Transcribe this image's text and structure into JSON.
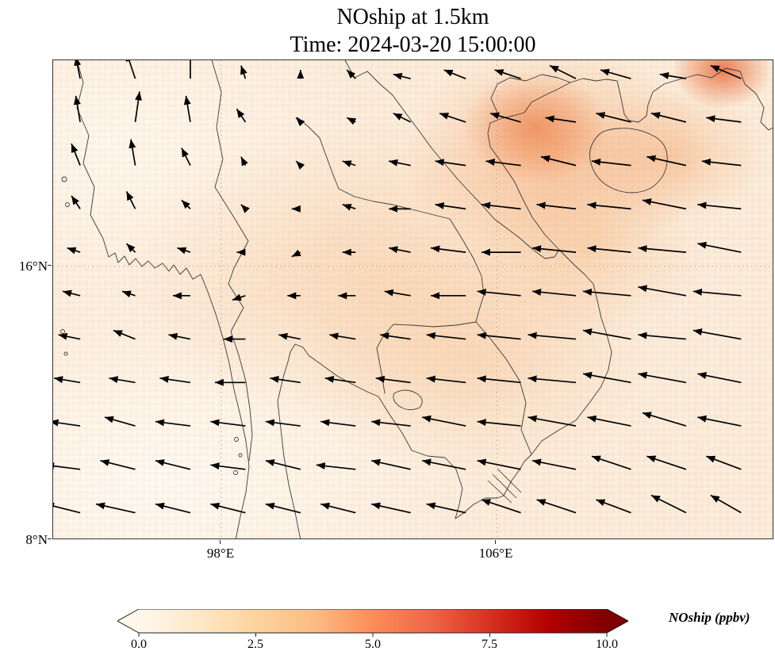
{
  "title": {
    "line1": "NOship at 1.5km",
    "line2": "Time: 2024-03-20 15:00:00"
  },
  "axes": {
    "yticks": [
      {
        "label": "16°N"
      },
      {
        "label": "8°N"
      }
    ],
    "xticks": [
      {
        "label": "98°E"
      },
      {
        "label": "106°E"
      }
    ]
  },
  "colorbar": {
    "label": "NOship (ppbv)",
    "ticks": [
      "0.0",
      "2.5",
      "5.0",
      "7.5",
      "10.0"
    ],
    "tick_values": [
      0.0,
      2.5,
      5.0,
      7.5,
      10.0
    ],
    "extend": "both",
    "colors": [
      "#fff7ec",
      "#fee8c8",
      "#fdd49e",
      "#fdbb84",
      "#fc8d59",
      "#ef6548",
      "#d7301f",
      "#b30000",
      "#7f0000"
    ]
  },
  "chart_data": {
    "type": "heatmap",
    "subtype": "geographic field map with wind-vector (quiver) overlay and coastlines",
    "variable": "NOship",
    "units": "ppbv",
    "level": "1.5km",
    "time": "2024-03-20 15:00:00",
    "colormap": "OrRd",
    "value_range": [
      0,
      10
    ],
    "extent": {
      "lon": [
        93.1,
        114.1
      ],
      "lat": [
        8,
        22
      ]
    },
    "gridlines": {
      "lons": [
        98,
        106
      ],
      "lats": [
        8,
        16
      ],
      "style": "dotted"
    },
    "shading_summary": [
      {
        "region": "western ocean / Bay of Bengal and far southwest",
        "approx_value_ppbv": 0.3
      },
      {
        "region": "central Thailand, Laos, Cambodia (broad wash)",
        "approx_value_ppbv": 1.5
      },
      {
        "region": "central Vietnam coast patch",
        "approx_value_ppbv": 2.0
      },
      {
        "region": "northern Vietnam / Gulf of Tonkin",
        "approx_value_ppbv": 4.0
      },
      {
        "region": "far northeast corner (southern China)",
        "approx_value_ppbv": 6.0
      }
    ],
    "wind": {
      "description": "arrow components [u,v]; u eastward, v northward, relative units",
      "lons": [
        93.9,
        95.5,
        97.1,
        98.7,
        100.3,
        101.9,
        103.5,
        105.1,
        106.7,
        108.3,
        109.9,
        111.5,
        113.1
      ],
      "lats": [
        21.5,
        20.23,
        18.96,
        17.69,
        16.42,
        15.15,
        13.88,
        12.61,
        11.34,
        10.07,
        8.8
      ],
      "uv": [
        [
          [
            -1,
            5
          ],
          [
            -2,
            6
          ],
          [
            0,
            7
          ],
          [
            -1,
            3
          ],
          [
            0,
            2
          ],
          [
            -2,
            2
          ],
          [
            -4,
            1
          ],
          [
            -5,
            2
          ],
          [
            -6,
            2
          ],
          [
            -6,
            3
          ],
          [
            -7,
            2
          ],
          [
            -6,
            1
          ],
          [
            -7,
            3
          ]
        ],
        [
          [
            -1,
            6
          ],
          [
            1,
            7
          ],
          [
            -1,
            6
          ],
          [
            -2,
            3
          ],
          [
            -1,
            1
          ],
          [
            -2,
            1
          ],
          [
            -4,
            2
          ],
          [
            -6,
            2
          ],
          [
            -7,
            2
          ],
          [
            -7,
            1
          ],
          [
            -8,
            2
          ],
          [
            -8,
            2
          ],
          [
            -8,
            1
          ]
        ],
        [
          [
            -2,
            5
          ],
          [
            -1,
            6
          ],
          [
            -2,
            4
          ],
          [
            -1,
            2
          ],
          [
            -1,
            1
          ],
          [
            -3,
            1
          ],
          [
            -5,
            1
          ],
          [
            -7,
            1
          ],
          [
            -8,
            1
          ],
          [
            -8,
            2
          ],
          [
            -9,
            1
          ],
          [
            -9,
            2
          ],
          [
            -9,
            1
          ]
        ],
        [
          [
            -2,
            3
          ],
          [
            -2,
            4
          ],
          [
            -2,
            2
          ],
          [
            -1,
            1
          ],
          [
            -2,
            0
          ],
          [
            -3,
            1
          ],
          [
            -5,
            0
          ],
          [
            -7,
            1
          ],
          [
            -9,
            1
          ],
          [
            -9,
            1
          ],
          [
            -10,
            1
          ],
          [
            -10,
            2
          ],
          [
            -10,
            1
          ]
        ],
        [
          [
            -3,
            1
          ],
          [
            -2,
            2
          ],
          [
            -3,
            1
          ],
          [
            -2,
            0
          ],
          [
            -2,
            -1
          ],
          [
            -3,
            0
          ],
          [
            -5,
            1
          ],
          [
            -8,
            1
          ],
          [
            -9,
            0
          ],
          [
            -10,
            1
          ],
          [
            -10,
            1
          ],
          [
            -11,
            1
          ],
          [
            -10,
            2
          ]
        ],
        [
          [
            -4,
            1
          ],
          [
            -3,
            1
          ],
          [
            -4,
            0
          ],
          [
            -3,
            -1
          ],
          [
            -3,
            0
          ],
          [
            -4,
            0
          ],
          [
            -6,
            1
          ],
          [
            -8,
            0
          ],
          [
            -10,
            1
          ],
          [
            -10,
            1
          ],
          [
            -11,
            1
          ],
          [
            -11,
            2
          ],
          [
            -11,
            1
          ]
        ],
        [
          [
            -5,
            1
          ],
          [
            -5,
            2
          ],
          [
            -5,
            1
          ],
          [
            -5,
            0
          ],
          [
            -5,
            1
          ],
          [
            -6,
            1
          ],
          [
            -7,
            1
          ],
          [
            -9,
            1
          ],
          [
            -10,
            1
          ],
          [
            -11,
            1
          ],
          [
            -11,
            2
          ],
          [
            -11,
            1
          ],
          [
            -11,
            2
          ]
        ],
        [
          [
            -6,
            1
          ],
          [
            -6,
            1
          ],
          [
            -7,
            1
          ],
          [
            -7,
            0
          ],
          [
            -7,
            1
          ],
          [
            -7,
            1
          ],
          [
            -8,
            1
          ],
          [
            -9,
            1
          ],
          [
            -10,
            1
          ],
          [
            -11,
            1
          ],
          [
            -11,
            2
          ],
          [
            -11,
            2
          ],
          [
            -10,
            2
          ]
        ],
        [
          [
            -7,
            1
          ],
          [
            -7,
            2
          ],
          [
            -8,
            1
          ],
          [
            -8,
            1
          ],
          [
            -8,
            1
          ],
          [
            -8,
            1
          ],
          [
            -9,
            1
          ],
          [
            -10,
            2
          ],
          [
            -10,
            1
          ],
          [
            -11,
            2
          ],
          [
            -10,
            2
          ],
          [
            -10,
            3
          ],
          [
            -10,
            2
          ]
        ],
        [
          [
            -8,
            1
          ],
          [
            -8,
            2
          ],
          [
            -8,
            2
          ],
          [
            -8,
            1
          ],
          [
            -8,
            2
          ],
          [
            -9,
            1
          ],
          [
            -9,
            2
          ],
          [
            -10,
            2
          ],
          [
            -10,
            2
          ],
          [
            -10,
            2
          ],
          [
            -9,
            3
          ],
          [
            -9,
            3
          ],
          [
            -8,
            3
          ]
        ],
        [
          [
            -8,
            2
          ],
          [
            -9,
            2
          ],
          [
            -8,
            2
          ],
          [
            -8,
            2
          ],
          [
            -8,
            2
          ],
          [
            -8,
            2
          ],
          [
            -9,
            2
          ],
          [
            -9,
            2
          ],
          [
            -9,
            3
          ],
          [
            -9,
            3
          ],
          [
            -8,
            3
          ],
          [
            -8,
            4
          ],
          [
            -7,
            4
          ]
        ]
      ]
    }
  }
}
